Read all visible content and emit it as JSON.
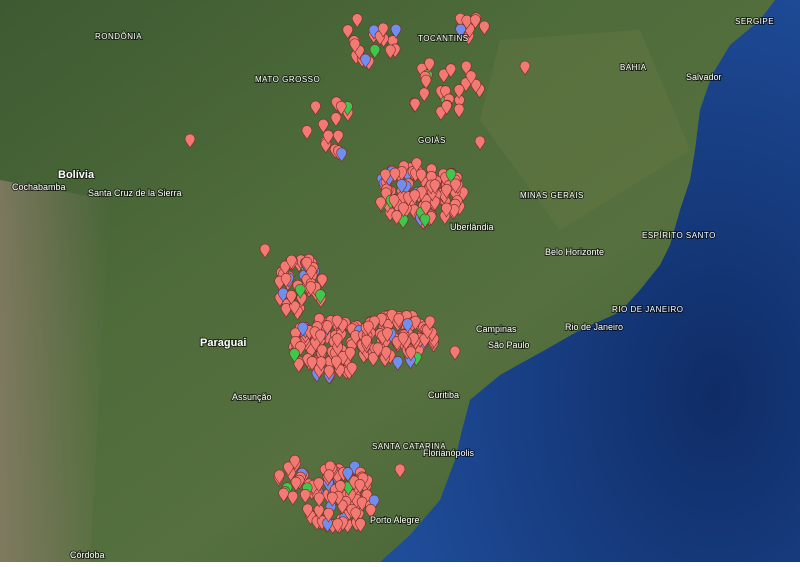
{
  "map": {
    "labels": {
      "bolivia": "Bolívia",
      "paraguai": "Paraguai",
      "cochabamba": "Cochabamba",
      "santa_cruz": "Santa Cruz de la Sierra",
      "rondonia": "RONDÔNIA",
      "mato_grosso": "MATO GROSSO",
      "goias": "GOIÁS",
      "minas_gerais": "MINAS GERAIS",
      "bahia": "BAHIA",
      "tocantins": "TOCANTINS",
      "sergipe": "SERGIPE",
      "salvador": "Salvador",
      "espirito_santo": "ESPÍRITO SANTO",
      "rio_state": "RIO DE JANEIRO",
      "rio_city": "Rio de Janeiro",
      "sao_paulo": "São Paulo",
      "campinas": "Campinas",
      "belo_horizonte": "Belo Horizonte",
      "curitiba": "Curitiba",
      "santa_catarina": "SANTA CATARINA",
      "florianopolis": "Florianópolis",
      "porto_alegre": "Porto Alegre",
      "assuncao": "Assunção",
      "cordoba": "Córdoba",
      "uberlandia": "Uberlândia"
    }
  }
}
